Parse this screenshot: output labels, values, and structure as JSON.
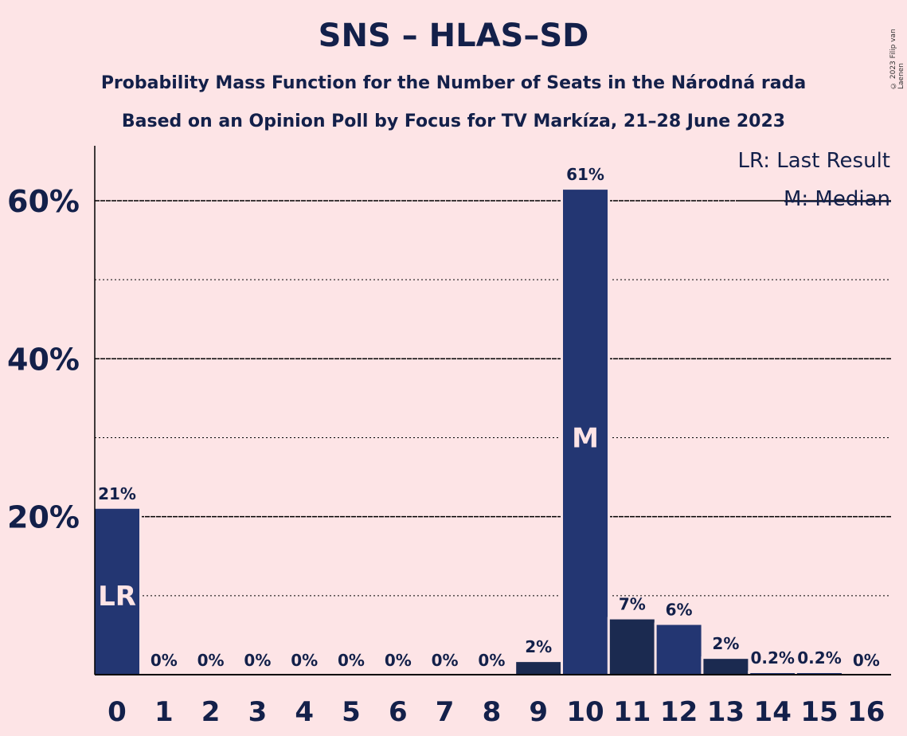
{
  "title": "SNS – HLAS–SD",
  "subtitle1": "Probability Mass Function for the Number of Seats in the Národná rada",
  "subtitle2": "Based on an Opinion Poll by Focus for TV Markíza, 21–28 June 2023",
  "copyright": "© 2023 Filip van Laenen",
  "legend": {
    "last_result": "LR: Last Result",
    "median": "M: Median"
  },
  "chart_data": {
    "type": "bar",
    "categories": [
      "0",
      "1",
      "2",
      "3",
      "4",
      "5",
      "6",
      "7",
      "8",
      "9",
      "10",
      "11",
      "12",
      "13",
      "14",
      "15",
      "16"
    ],
    "values": [
      21,
      0,
      0,
      0,
      0,
      0,
      0,
      0,
      0,
      1.6,
      61.4,
      7,
      6.3,
      2,
      0.2,
      0.2,
      0
    ],
    "labels": [
      "21%",
      "0%",
      "0%",
      "0%",
      "0%",
      "0%",
      "0%",
      "0%",
      "0%",
      "2%",
      "61%",
      "7%",
      "6%",
      "2%",
      "0.2%",
      "0.2%",
      "0%"
    ],
    "ylim": [
      0,
      67
    ],
    "yticks": [
      20,
      40,
      60
    ],
    "ytick_labels": [
      "20%",
      "40%",
      "60%"
    ],
    "minor_gridlines": [
      10,
      30,
      50
    ],
    "legend_position": "top-right",
    "markers": [
      {
        "category": "0",
        "text": "LR"
      },
      {
        "category": "10",
        "text": "M"
      }
    ],
    "colors": {
      "bar": "#233672",
      "bar_dark": "#1b2a50",
      "background": "#fde4e6",
      "marker_text": "#fde4e6"
    },
    "dark_bars": [
      "9",
      "11",
      "13"
    ]
  }
}
